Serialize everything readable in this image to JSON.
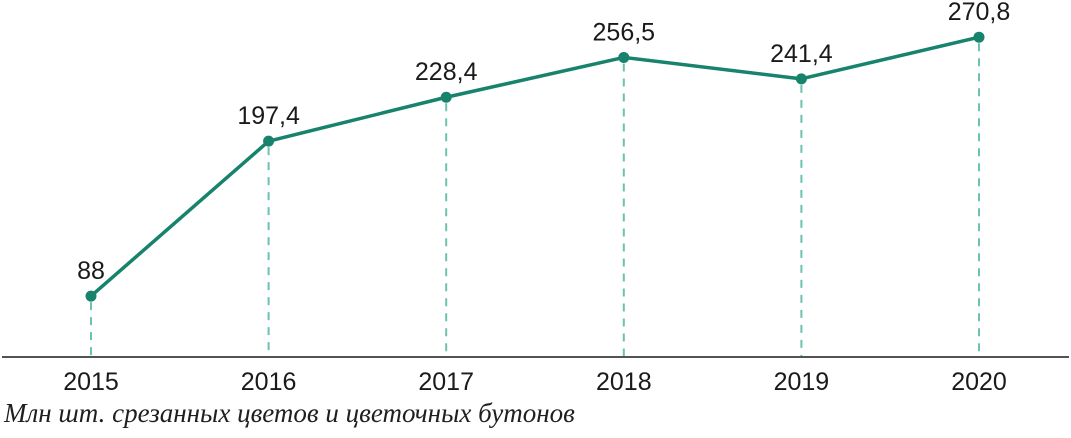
{
  "chart_data": {
    "type": "line",
    "categories": [
      "2015",
      "2016",
      "2017",
      "2018",
      "2019",
      "2020"
    ],
    "values": [
      88,
      197.4,
      228.4,
      256.5,
      241.4,
      270.8
    ],
    "value_labels": [
      "88",
      "197,4",
      "228,4",
      "256,5",
      "241,4",
      "270,8"
    ],
    "series_name": "Млн шт. срезанных цветов и цветочных бутонов",
    "caption": "Млн шт. срезанных цветов и цветочных бутонов",
    "title": "",
    "xlabel": "",
    "ylabel": "",
    "ylim": [
      45,
      290
    ],
    "grid": false,
    "legend": false,
    "marker": "circle",
    "line_color": "#17836c",
    "marker_color": "#17836c",
    "dashed_guide_color": "#6cc2b1",
    "axis_color": "#1a1a1a",
    "label_color": "#1a1a1a"
  }
}
